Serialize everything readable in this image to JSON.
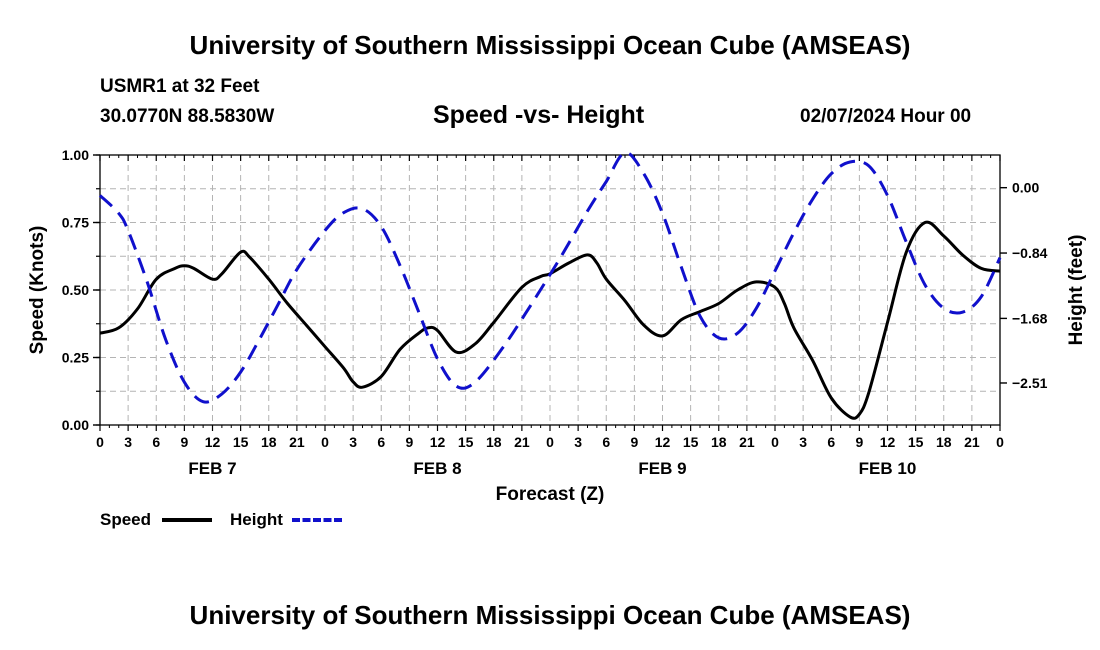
{
  "header": {
    "title_top": "University of Southern Mississippi Ocean Cube (AMSEAS)",
    "title_bottom": "University of Southern Mississippi Ocean Cube (AMSEAS)",
    "station": "USMR1 at 32 Feet",
    "coords": "30.0770N  88.5830W",
    "plot_title": "Speed -vs- Height",
    "run_time": "02/07/2024 Hour 00"
  },
  "legend": {
    "speed_label": "Speed",
    "height_label": "Height"
  },
  "chart_data": {
    "type": "line",
    "title": "Speed -vs- Height",
    "xlabel": "Forecast (Z)",
    "ylabel_left": "Speed (Knots)",
    "ylabel_right": "Height (feet)",
    "x_unit": "hours since FEB 7 00Z",
    "xlim": [
      0,
      96
    ],
    "ylim_left": [
      0,
      1.0
    ],
    "ylim_right": [
      -3.05,
      0.42
    ],
    "x_tick_values": [
      0,
      3,
      6,
      9,
      12,
      15,
      18,
      21,
      24,
      27,
      30,
      33,
      36,
      39,
      42,
      45,
      48,
      51,
      54,
      57,
      60,
      63,
      66,
      69,
      72,
      75,
      78,
      81,
      84,
      87,
      90,
      93,
      96
    ],
    "x_tick_labels": [
      "0",
      "3",
      "6",
      "9",
      "12",
      "15",
      "18",
      "21",
      "0",
      "3",
      "6",
      "9",
      "12",
      "15",
      "18",
      "21",
      "0",
      "3",
      "6",
      "9",
      "12",
      "15",
      "18",
      "21",
      "0",
      "3",
      "6",
      "9",
      "12",
      "15",
      "18",
      "21",
      "0"
    ],
    "day_labels": [
      {
        "label": "FEB 7",
        "x": 12
      },
      {
        "label": "FEB 8",
        "x": 36
      },
      {
        "label": "FEB 9",
        "x": 60
      },
      {
        "label": "FEB 10",
        "x": 84
      }
    ],
    "y_left_ticks": [
      0.0,
      0.25,
      0.5,
      0.75,
      1.0
    ],
    "y_left_tick_labels": [
      "0.00",
      "0.25",
      "0.50",
      "0.75",
      "1.00"
    ],
    "y_right_ticks": [
      0.0,
      -0.84,
      -1.68,
      -2.51
    ],
    "y_right_tick_labels": [
      "0.00",
      "−0.84",
      "−1.68",
      "−2.51"
    ],
    "grid": true,
    "series": [
      {
        "name": "Speed",
        "axis": "left",
        "color": "#000000",
        "style": "solid",
        "x": [
          0,
          2,
          4,
          6,
          8,
          9,
          10,
          12,
          13,
          15,
          16,
          18,
          20,
          22,
          24,
          26,
          27,
          28,
          30,
          32,
          34,
          35,
          36,
          38,
          40,
          42,
          45,
          47,
          48,
          50,
          52,
          53,
          54,
          56,
          58,
          60,
          62,
          64,
          66,
          68,
          70,
          72,
          73,
          74,
          76,
          78,
          80,
          81,
          82,
          84,
          86,
          88,
          90,
          92,
          94,
          96
        ],
        "y": [
          0.34,
          0.36,
          0.43,
          0.54,
          0.58,
          0.59,
          0.58,
          0.54,
          0.56,
          0.64,
          0.62,
          0.54,
          0.45,
          0.37,
          0.29,
          0.21,
          0.16,
          0.14,
          0.18,
          0.28,
          0.34,
          0.36,
          0.35,
          0.27,
          0.3,
          0.38,
          0.51,
          0.55,
          0.56,
          0.6,
          0.63,
          0.6,
          0.54,
          0.46,
          0.37,
          0.33,
          0.39,
          0.42,
          0.45,
          0.5,
          0.53,
          0.51,
          0.45,
          0.36,
          0.24,
          0.1,
          0.03,
          0.04,
          0.12,
          0.38,
          0.64,
          0.75,
          0.7,
          0.63,
          0.58,
          0.57
        ]
      },
      {
        "name": "Height",
        "axis": "right",
        "color": "#1010cc",
        "style": "dashed",
        "x": [
          0,
          2,
          3,
          5,
          7,
          9,
          11,
          13,
          15,
          17,
          19,
          21,
          24,
          26,
          28,
          30,
          32,
          34,
          36,
          38,
          40,
          43,
          46,
          49,
          52,
          54,
          56,
          58,
          60,
          62,
          64,
          66,
          68,
          70,
          72,
          74,
          76,
          78,
          80,
          82,
          84,
          86,
          88,
          90,
          92,
          94,
          96
        ],
        "y": [
          -0.1,
          -0.33,
          -0.55,
          -1.2,
          -1.95,
          -2.5,
          -2.75,
          -2.65,
          -2.37,
          -1.95,
          -1.5,
          -1.05,
          -0.55,
          -0.32,
          -0.27,
          -0.5,
          -1.0,
          -1.6,
          -2.2,
          -2.55,
          -2.5,
          -2.05,
          -1.5,
          -0.92,
          -0.3,
          0.08,
          0.45,
          0.18,
          -0.33,
          -1.02,
          -1.65,
          -1.93,
          -1.87,
          -1.55,
          -1.07,
          -0.58,
          -0.15,
          0.18,
          0.33,
          0.28,
          -0.1,
          -0.7,
          -1.25,
          -1.55,
          -1.6,
          -1.4,
          -0.9
        ]
      }
    ]
  }
}
